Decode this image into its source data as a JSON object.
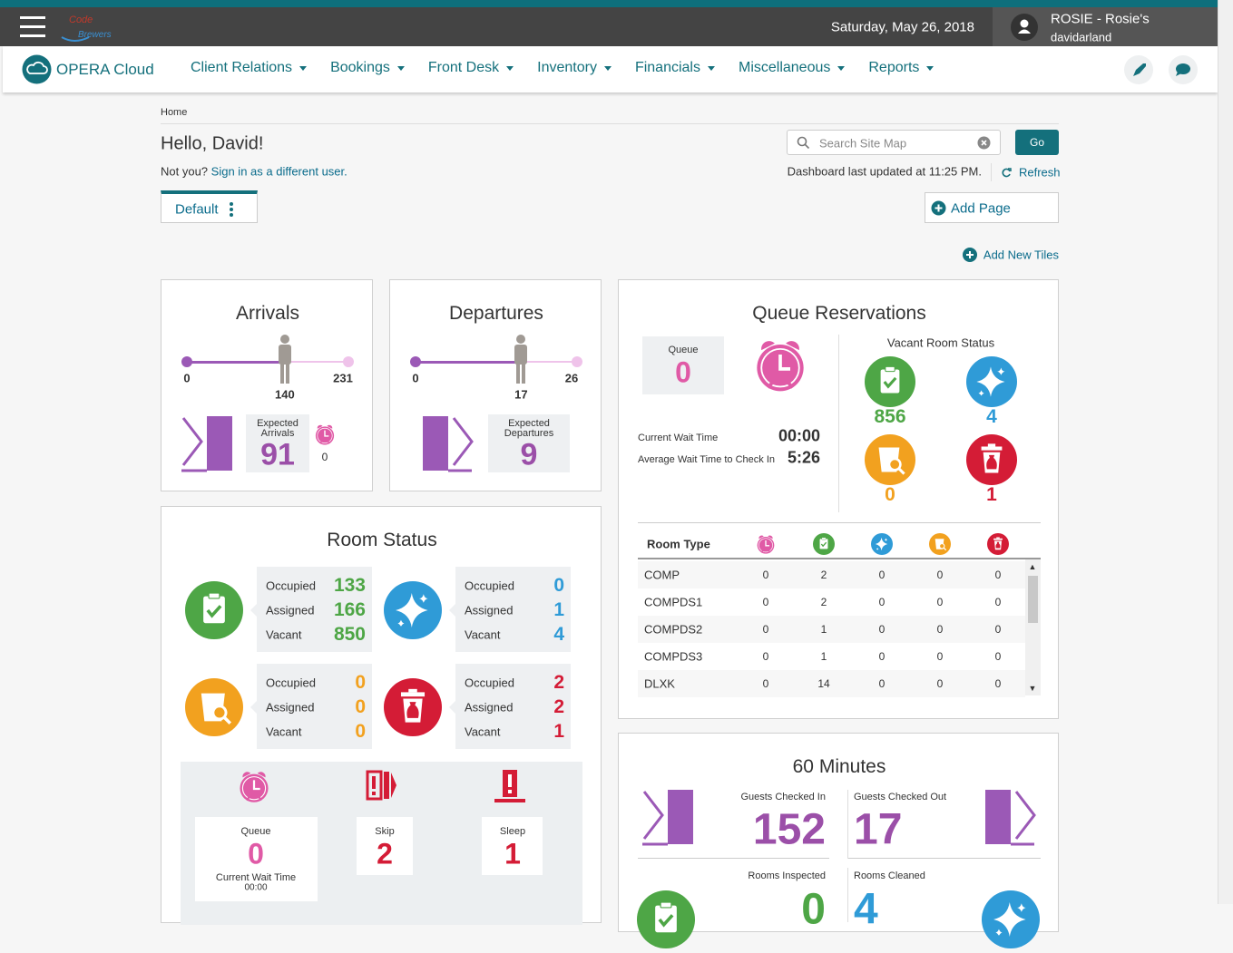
{
  "header": {
    "date": "Saturday, May 26, 2018",
    "user": "ROSIE - Rosie's",
    "username": "davidarland"
  },
  "nav": {
    "brand": "OPERA Cloud",
    "menus": [
      "Client Relations",
      "Bookings",
      "Front Desk",
      "Inventory",
      "Financials",
      "Miscellaneous",
      "Reports"
    ]
  },
  "page": {
    "breadcrumb": "Home",
    "greeting": "Hello, David!",
    "not_you": "Not you?",
    "sign_in": "Sign in as a different user.",
    "search_placeholder": "Search Site Map",
    "go": "Go",
    "last_updated": "Dashboard last updated at 11:25 PM.",
    "refresh": "Refresh",
    "tab": "Default",
    "add_page": "Add Page",
    "add_tiles": "Add New Tiles"
  },
  "arrivals": {
    "title": "Arrivals",
    "min": 0,
    "current": 140,
    "max": 231,
    "expected_label": "Expected Arrivals",
    "expected": 91,
    "queue": 0
  },
  "departures": {
    "title": "Departures",
    "min": 0,
    "current": 17,
    "max": 26,
    "expected_label": "Expected Departures",
    "expected": 9
  },
  "queue": {
    "title": "Queue Reservations",
    "queue_label": "Queue",
    "queue": 0,
    "current_wait_label": "Current Wait Time",
    "current_wait": "00:00",
    "avg_wait_label": "Average Wait Time to Check In",
    "avg_wait": "5:26",
    "vacant_title": "Vacant Room Status",
    "vacant": [
      856,
      4,
      0,
      1
    ],
    "table": {
      "header": "Room Type",
      "rows": [
        [
          "COMP",
          0,
          2,
          0,
          0,
          0
        ],
        [
          "COMPDS1",
          0,
          2,
          0,
          0,
          0
        ],
        [
          "COMPDS2",
          0,
          1,
          0,
          0,
          0
        ],
        [
          "COMPDS3",
          0,
          1,
          0,
          0,
          0
        ],
        [
          "DLXK",
          0,
          14,
          0,
          0,
          0
        ]
      ]
    }
  },
  "room_status": {
    "title": "Room Status",
    "row_labels": [
      "Occupied",
      "Assigned",
      "Vacant"
    ],
    "groups": [
      [
        133,
        166,
        850
      ],
      [
        0,
        1,
        4
      ],
      [
        0,
        0,
        0
      ],
      [
        2,
        2,
        1
      ]
    ],
    "queue_label": "Queue",
    "queue": 0,
    "wait_label": "Current Wait Time",
    "wait": "00:00",
    "skip_label": "Skip",
    "skip": 2,
    "sleep_label": "Sleep",
    "sleep": 1
  },
  "sixty": {
    "title": "60 Minutes",
    "checked_in_label": "Guests Checked In",
    "checked_in": 152,
    "checked_out_label": "Guests Checked Out",
    "checked_out": 17,
    "inspected_label": "Rooms Inspected",
    "inspected": 0,
    "cleaned_label": "Rooms Cleaned",
    "cleaned": 4
  }
}
